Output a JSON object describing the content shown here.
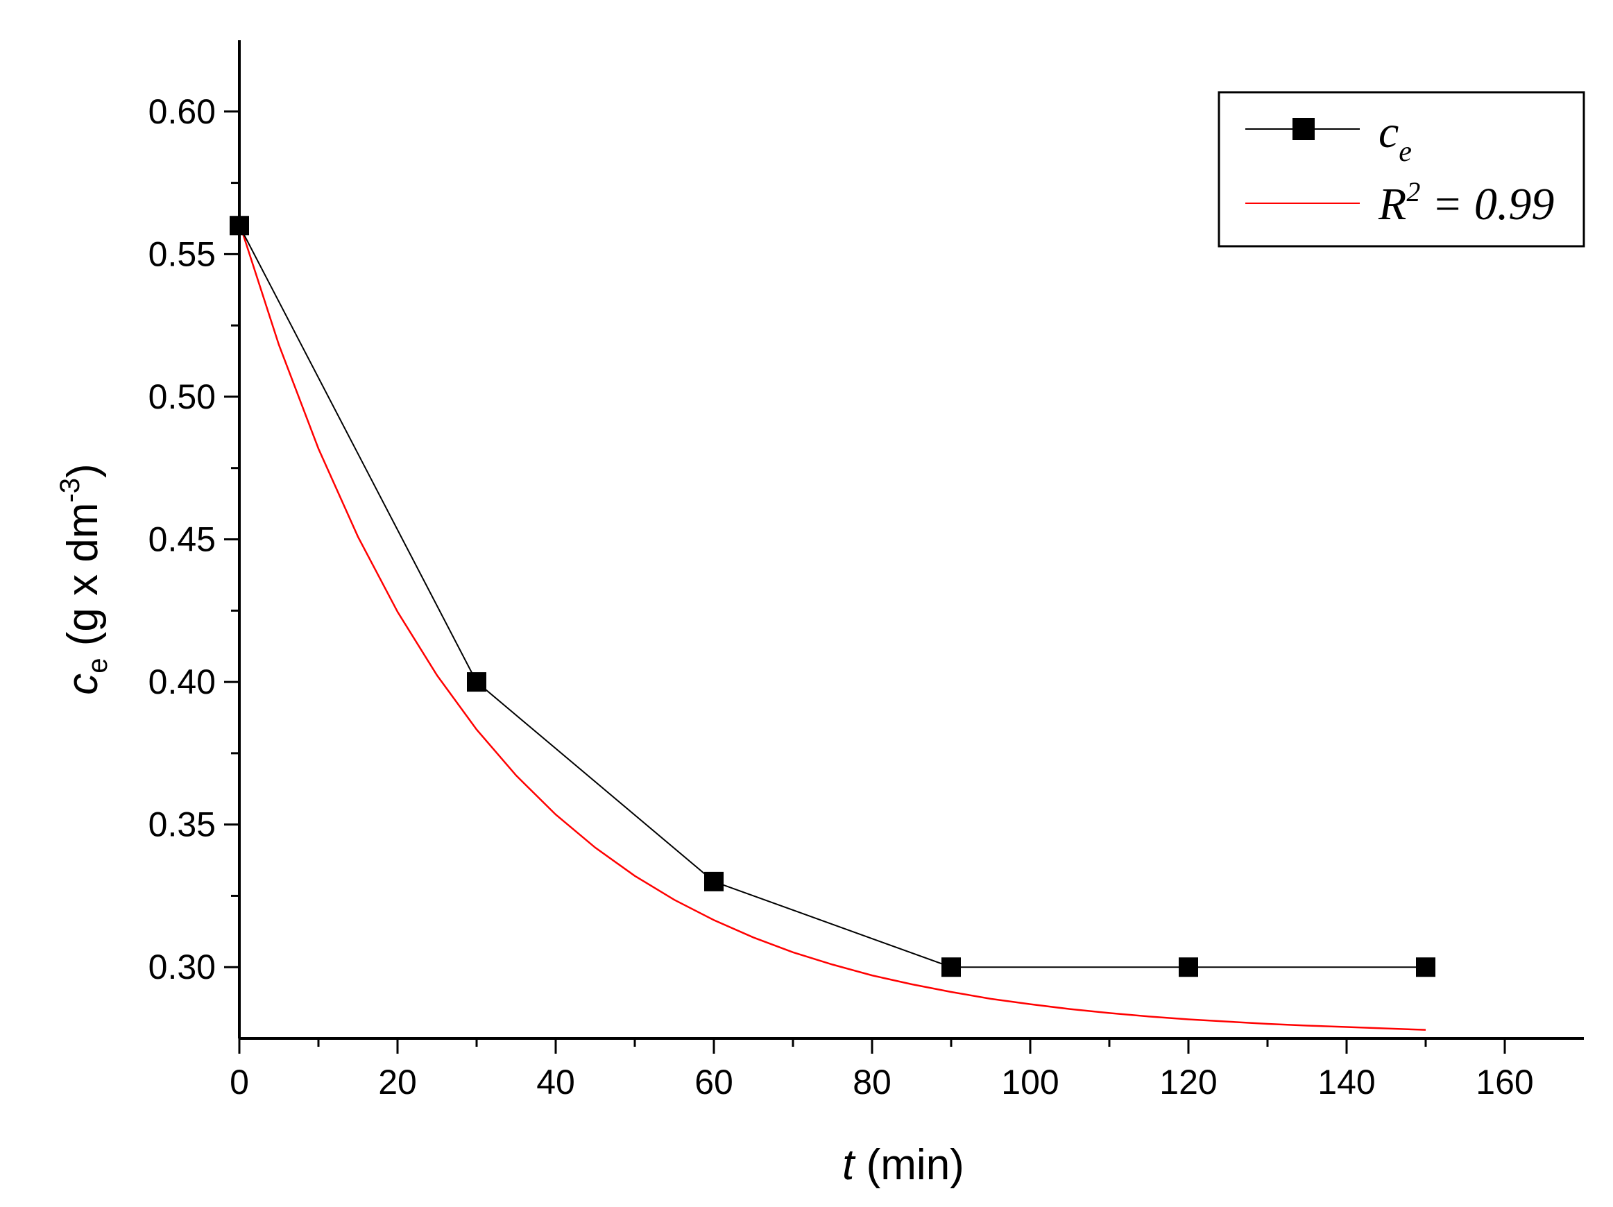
{
  "chart_data": {
    "type": "line",
    "xlabel": {
      "var": "t",
      "unit": " (min)"
    },
    "ylabel": {
      "var": "c",
      "sub": "e",
      "unit": " (g x dm",
      "sup": "-3",
      "close": ")"
    },
    "xlim": [
      0,
      170
    ],
    "ylim": [
      0.275,
      0.625
    ],
    "x_major_ticks": [
      0,
      20,
      40,
      60,
      80,
      100,
      120,
      140,
      160
    ],
    "x_tick_labels": [
      "0",
      "20",
      "40",
      "60",
      "80",
      "100",
      "120",
      "140",
      "160"
    ],
    "y_major_ticks": [
      0.3,
      0.35,
      0.4,
      0.45,
      0.5,
      0.55,
      0.6
    ],
    "y_tick_labels": [
      "0.30",
      "0.35",
      "0.40",
      "0.45",
      "0.50",
      "0.55",
      "0.60"
    ],
    "grid": false,
    "legend_position": "top-right",
    "series": [
      {
        "name": "c",
        "name_sub": "e",
        "kind": "line+markers",
        "color": "#000000",
        "marker": "square",
        "x": [
          0,
          30,
          60,
          90,
          120,
          150
        ],
        "y": [
          0.56,
          0.4,
          0.33,
          0.3,
          0.3,
          0.3
        ]
      },
      {
        "name": "R",
        "name_sup": "2",
        "name_rest": " = 0.99",
        "kind": "fit",
        "color": "#ff0000",
        "x": [
          0,
          5,
          10,
          15,
          20,
          25,
          30,
          35,
          40,
          45,
          50,
          55,
          60,
          65,
          70,
          75,
          80,
          85,
          90,
          95,
          100,
          105,
          110,
          115,
          120,
          125,
          130,
          135,
          140,
          145,
          150
        ],
        "y": [
          0.561,
          0.5182,
          0.4818,
          0.4509,
          0.4246,
          0.4023,
          0.3833,
          0.3672,
          0.3535,
          0.3419,
          0.332,
          0.3236,
          0.3165,
          0.3104,
          0.3052,
          0.3009,
          0.2971,
          0.294,
          0.2913,
          0.2889,
          0.287,
          0.2853,
          0.2839,
          0.2827,
          0.2817,
          0.2809,
          0.2801,
          0.2795,
          0.279,
          0.2785,
          0.278
        ]
      }
    ]
  }
}
